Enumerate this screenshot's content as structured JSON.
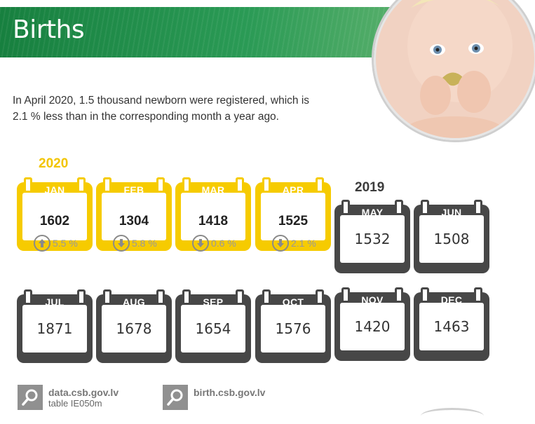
{
  "title": "Births",
  "intro": "In April 2020, 1.5 thousand newborn were registered, which is 2.1 % less than in the corresponding month a year ago.",
  "years": {
    "current": "2020",
    "previous": "2019"
  },
  "colors": {
    "banner": "#1e8a4a",
    "highlight": "#f6cb00",
    "dark": "#474747",
    "year_2020": "#f2c500"
  },
  "months_2020": [
    {
      "month": "JAN",
      "value": "1602",
      "change": "5.5 %",
      "direction": "up"
    },
    {
      "month": "FEB",
      "value": "1304",
      "change": "5.8 %",
      "direction": "down"
    },
    {
      "month": "MAR",
      "value": "1418",
      "change": "0.6 %",
      "direction": "down"
    },
    {
      "month": "APR",
      "value": "1525",
      "change": "2.1 %",
      "direction": "down"
    }
  ],
  "months_2019": [
    {
      "month": "MAY",
      "value": "1532"
    },
    {
      "month": "JUN",
      "value": "1508"
    },
    {
      "month": "JUL",
      "value": "1871"
    },
    {
      "month": "AUG",
      "value": "1678"
    },
    {
      "month": "SEP",
      "value": "1654"
    },
    {
      "month": "OCT",
      "value": "1576"
    },
    {
      "month": "NOV",
      "value": "1420"
    },
    {
      "month": "DEC",
      "value": "1463"
    }
  ],
  "sources": [
    {
      "link": "data.csb.gov.lv",
      "note": "table IE050m",
      "icon": "magnifier-icon"
    },
    {
      "link": "birth.csb.gov.lv",
      "note": "",
      "icon": "magnifier-icon"
    }
  ]
}
